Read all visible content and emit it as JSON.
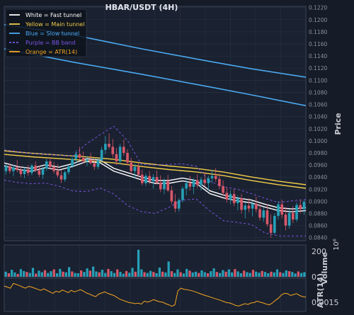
{
  "colors": {
    "background": "#161c27",
    "grid": "#2a3344",
    "text": "#c8ccd4",
    "up": "#26a0b8",
    "down": "#d8586a",
    "fast": "#ffffff",
    "main": "#f2cd4a",
    "slow": "#4aa8f0",
    "bb": "#7b55e6",
    "atr": "#f5a623"
  },
  "chart_data": [
    {
      "type": "candlestick",
      "title": "HBAR/USDT (4H)",
      "ylabel": "Price",
      "ylim": [
        0.0835,
        0.1222
      ],
      "yticks": [
        "0.0840",
        "0.0860",
        "0.0880",
        "0.0900",
        "0.0920",
        "0.0940",
        "0.0960",
        "0.0980",
        "0.1000",
        "0.1020",
        "0.1040",
        "0.1060",
        "0.1080",
        "0.1100",
        "0.1120",
        "0.1140",
        "0.1160",
        "0.1180",
        "0.1200",
        "0.1220"
      ],
      "grid": true,
      "legend_position": "top-left",
      "legend": [
        {
          "label": "White = Fast tunnel",
          "key": "fast",
          "dash": false
        },
        {
          "label": "Yellow = Main tunnel",
          "key": "main",
          "dash": false
        },
        {
          "label": "Blue = Slow tunnel",
          "key": "slow",
          "dash": false
        },
        {
          "label": "Purple = BB band",
          "key": "bb",
          "dash": true
        },
        {
          "label": "Orange = ATR(14)",
          "key": "atr",
          "dash": false
        }
      ],
      "series": [
        {
          "name": "White = Fast tunnel",
          "x": [
            0,
            20,
            40,
            60,
            80,
            100,
            120,
            140,
            160,
            180,
            200,
            220,
            240,
            260,
            280,
            300,
            320,
            340,
            360,
            380,
            400,
            420,
            440
          ],
          "values": [
            0.0961,
            0.0955,
            0.0952,
            0.0958,
            0.0954,
            0.096,
            0.0968,
            0.0966,
            0.0952,
            0.0945,
            0.0938,
            0.0932,
            0.0932,
            0.0936,
            0.0932,
            0.0915,
            0.0908,
            0.0903,
            0.09,
            0.0893,
            0.0887,
            0.0885,
            0.0887
          ]
        },
        {
          "name": "Yellow = Main tunnel",
          "x": [
            0,
            40,
            80,
            120,
            160,
            200,
            240,
            280,
            320,
            360,
            400,
            440
          ],
          "values": [
            0.0981,
            0.0977,
            0.0974,
            0.0971,
            0.0967,
            0.0961,
            0.0956,
            0.0952,
            0.0946,
            0.0938,
            0.0931,
            0.0925
          ]
        },
        {
          "name": "Blue = Slow tunnel",
          "x": [
            0,
            100,
            200,
            300,
            360,
            440
          ],
          "values": [
            0.1192,
            0.1175,
            0.1152,
            0.1131,
            0.1119,
            0.1105
          ]
        },
        {
          "name": "Blue = Slow tunnel",
          "x": [
            0,
            100,
            200,
            300,
            360,
            440
          ],
          "values": [
            0.1152,
            0.113,
            0.111,
            0.1089,
            0.1076,
            0.1058
          ]
        },
        {
          "name": "Purple = BB band",
          "x": [
            0,
            20,
            40,
            60,
            80,
            100,
            120,
            140,
            160,
            180,
            200,
            220,
            240,
            260,
            280,
            300,
            320,
            340,
            360,
            380,
            400,
            420,
            440
          ],
          "values": [
            0.0985,
            0.0982,
            0.0979,
            0.0978,
            0.0976,
            0.0975,
            0.0995,
            0.101,
            0.1024,
            0.1,
            0.0961,
            0.096,
            0.0961,
            0.0962,
            0.0958,
            0.0933,
            0.0924,
            0.092,
            0.0913,
            0.0905,
            0.0898,
            0.0901,
            0.0903
          ]
        },
        {
          "name": "Purple = BB band",
          "x": [
            0,
            20,
            40,
            60,
            80,
            100,
            120,
            140,
            160,
            180,
            200,
            220,
            240,
            260,
            280,
            300,
            320,
            340,
            360,
            380,
            400,
            420,
            440
          ],
          "values": [
            0.0935,
            0.0931,
            0.0929,
            0.093,
            0.0925,
            0.0917,
            0.0916,
            0.0922,
            0.0912,
            0.0893,
            0.0883,
            0.088,
            0.089,
            0.0902,
            0.0904,
            0.0884,
            0.0868,
            0.0865,
            0.0862,
            0.0848,
            0.0843,
            0.0843,
            0.0843
          ]
        }
      ],
      "candles": [
        {
          "o": 0.095,
          "h": 0.0962,
          "l": 0.0944,
          "c": 0.0958
        },
        {
          "o": 0.0958,
          "h": 0.0963,
          "l": 0.0946,
          "c": 0.095
        },
        {
          "o": 0.095,
          "h": 0.096,
          "l": 0.0942,
          "c": 0.0956
        },
        {
          "o": 0.0956,
          "h": 0.0968,
          "l": 0.0948,
          "c": 0.0952
        },
        {
          "o": 0.0952,
          "h": 0.0958,
          "l": 0.094,
          "c": 0.0945
        },
        {
          "o": 0.0945,
          "h": 0.0956,
          "l": 0.0938,
          "c": 0.0953
        },
        {
          "o": 0.0953,
          "h": 0.096,
          "l": 0.0942,
          "c": 0.0947
        },
        {
          "o": 0.0947,
          "h": 0.0962,
          "l": 0.0943,
          "c": 0.0959
        },
        {
          "o": 0.0959,
          "h": 0.0966,
          "l": 0.0948,
          "c": 0.0951
        },
        {
          "o": 0.0951,
          "h": 0.0959,
          "l": 0.094,
          "c": 0.0944
        },
        {
          "o": 0.0944,
          "h": 0.0957,
          "l": 0.0937,
          "c": 0.0954
        },
        {
          "o": 0.0954,
          "h": 0.097,
          "l": 0.095,
          "c": 0.0966
        },
        {
          "o": 0.0966,
          "h": 0.0972,
          "l": 0.0952,
          "c": 0.0957
        },
        {
          "o": 0.0957,
          "h": 0.0965,
          "l": 0.0946,
          "c": 0.095
        },
        {
          "o": 0.095,
          "h": 0.0961,
          "l": 0.0939,
          "c": 0.0943
        },
        {
          "o": 0.0943,
          "h": 0.0952,
          "l": 0.093,
          "c": 0.0936
        },
        {
          "o": 0.0936,
          "h": 0.0951,
          "l": 0.0932,
          "c": 0.0948
        },
        {
          "o": 0.0948,
          "h": 0.096,
          "l": 0.0944,
          "c": 0.0958
        },
        {
          "o": 0.0958,
          "h": 0.0973,
          "l": 0.0955,
          "c": 0.097
        },
        {
          "o": 0.097,
          "h": 0.0984,
          "l": 0.0962,
          "c": 0.0978
        },
        {
          "o": 0.0978,
          "h": 0.099,
          "l": 0.0968,
          "c": 0.0972
        },
        {
          "o": 0.0972,
          "h": 0.0982,
          "l": 0.0962,
          "c": 0.0966
        },
        {
          "o": 0.0966,
          "h": 0.0975,
          "l": 0.0958,
          "c": 0.0969
        },
        {
          "o": 0.0969,
          "h": 0.098,
          "l": 0.0961,
          "c": 0.0963
        },
        {
          "o": 0.0963,
          "h": 0.097,
          "l": 0.0952,
          "c": 0.0957
        },
        {
          "o": 0.0957,
          "h": 0.0971,
          "l": 0.0953,
          "c": 0.0968
        },
        {
          "o": 0.0968,
          "h": 0.099,
          "l": 0.0964,
          "c": 0.0985
        },
        {
          "o": 0.0985,
          "h": 0.1008,
          "l": 0.0978,
          "c": 0.0995
        },
        {
          "o": 0.0995,
          "h": 0.1012,
          "l": 0.0986,
          "c": 0.099
        },
        {
          "o": 0.099,
          "h": 0.1003,
          "l": 0.0972,
          "c": 0.0978
        },
        {
          "o": 0.0978,
          "h": 0.0988,
          "l": 0.096,
          "c": 0.0966
        },
        {
          "o": 0.0966,
          "h": 0.0995,
          "l": 0.0962,
          "c": 0.099
        },
        {
          "o": 0.099,
          "h": 0.1002,
          "l": 0.0975,
          "c": 0.098
        },
        {
          "o": 0.098,
          "h": 0.0986,
          "l": 0.096,
          "c": 0.0964
        },
        {
          "o": 0.0964,
          "h": 0.0972,
          "l": 0.0945,
          "c": 0.095
        },
        {
          "o": 0.095,
          "h": 0.0962,
          "l": 0.0938,
          "c": 0.0957
        },
        {
          "o": 0.0957,
          "h": 0.0963,
          "l": 0.094,
          "c": 0.0944
        },
        {
          "o": 0.0944,
          "h": 0.0952,
          "l": 0.0926,
          "c": 0.093
        },
        {
          "o": 0.093,
          "h": 0.0946,
          "l": 0.0925,
          "c": 0.0942
        },
        {
          "o": 0.0942,
          "h": 0.095,
          "l": 0.0928,
          "c": 0.0933
        },
        {
          "o": 0.0933,
          "h": 0.0945,
          "l": 0.0921,
          "c": 0.094
        },
        {
          "o": 0.094,
          "h": 0.0951,
          "l": 0.0928,
          "c": 0.0931
        },
        {
          "o": 0.0931,
          "h": 0.0943,
          "l": 0.0915,
          "c": 0.092
        },
        {
          "o": 0.092,
          "h": 0.0938,
          "l": 0.0912,
          "c": 0.0934
        },
        {
          "o": 0.0934,
          "h": 0.0944,
          "l": 0.0915,
          "c": 0.0918
        },
        {
          "o": 0.0918,
          "h": 0.0925,
          "l": 0.0895,
          "c": 0.09
        },
        {
          "o": 0.09,
          "h": 0.0912,
          "l": 0.0882,
          "c": 0.0888
        },
        {
          "o": 0.0888,
          "h": 0.0905,
          "l": 0.0883,
          "c": 0.0902
        },
        {
          "o": 0.0902,
          "h": 0.0925,
          "l": 0.0898,
          "c": 0.0921
        },
        {
          "o": 0.0921,
          "h": 0.0936,
          "l": 0.091,
          "c": 0.093
        },
        {
          "o": 0.093,
          "h": 0.0942,
          "l": 0.0918,
          "c": 0.0924
        },
        {
          "o": 0.0924,
          "h": 0.0938,
          "l": 0.0912,
          "c": 0.0935
        },
        {
          "o": 0.0935,
          "h": 0.0945,
          "l": 0.0922,
          "c": 0.0927
        },
        {
          "o": 0.0927,
          "h": 0.094,
          "l": 0.0918,
          "c": 0.0936
        },
        {
          "o": 0.0936,
          "h": 0.0948,
          "l": 0.0925,
          "c": 0.093
        },
        {
          "o": 0.093,
          "h": 0.0942,
          "l": 0.0918,
          "c": 0.0938
        },
        {
          "o": 0.0938,
          "h": 0.0952,
          "l": 0.093,
          "c": 0.0942
        },
        {
          "o": 0.0942,
          "h": 0.0955,
          "l": 0.0932,
          "c": 0.0937
        },
        {
          "o": 0.0937,
          "h": 0.0946,
          "l": 0.092,
          "c": 0.0925
        },
        {
          "o": 0.0925,
          "h": 0.0935,
          "l": 0.091,
          "c": 0.0914
        },
        {
          "o": 0.0914,
          "h": 0.0923,
          "l": 0.0898,
          "c": 0.0903
        },
        {
          "o": 0.0903,
          "h": 0.0918,
          "l": 0.0895,
          "c": 0.0912
        },
        {
          "o": 0.0912,
          "h": 0.092,
          "l": 0.0892,
          "c": 0.0897
        },
        {
          "o": 0.0897,
          "h": 0.091,
          "l": 0.0885,
          "c": 0.0905
        },
        {
          "o": 0.0905,
          "h": 0.0912,
          "l": 0.088,
          "c": 0.0886
        },
        {
          "o": 0.0886,
          "h": 0.0898,
          "l": 0.0872,
          "c": 0.0893
        },
        {
          "o": 0.0893,
          "h": 0.0905,
          "l": 0.0882,
          "c": 0.0888
        },
        {
          "o": 0.0888,
          "h": 0.09,
          "l": 0.0875,
          "c": 0.0896
        },
        {
          "o": 0.0896,
          "h": 0.0908,
          "l": 0.0882,
          "c": 0.0887
        },
        {
          "o": 0.0887,
          "h": 0.0895,
          "l": 0.0868,
          "c": 0.0873
        },
        {
          "o": 0.0873,
          "h": 0.089,
          "l": 0.0866,
          "c": 0.0885
        },
        {
          "o": 0.0885,
          "h": 0.0895,
          "l": 0.0858,
          "c": 0.0862
        },
        {
          "o": 0.0862,
          "h": 0.0878,
          "l": 0.084,
          "c": 0.0848
        },
        {
          "o": 0.0848,
          "h": 0.088,
          "l": 0.0845,
          "c": 0.0876
        },
        {
          "o": 0.0876,
          "h": 0.09,
          "l": 0.087,
          "c": 0.0895
        },
        {
          "o": 0.0895,
          "h": 0.0903,
          "l": 0.0872,
          "c": 0.0878
        },
        {
          "o": 0.0878,
          "h": 0.089,
          "l": 0.0852,
          "c": 0.086
        },
        {
          "o": 0.086,
          "h": 0.0886,
          "l": 0.0855,
          "c": 0.0881
        },
        {
          "o": 0.0881,
          "h": 0.0892,
          "l": 0.0864,
          "c": 0.087
        },
        {
          "o": 0.087,
          "h": 0.0898,
          "l": 0.0866,
          "c": 0.0894
        },
        {
          "o": 0.0894,
          "h": 0.0903,
          "l": 0.088,
          "c": 0.0887
        },
        {
          "o": 0.0887,
          "h": 0.0902,
          "l": 0.0878,
          "c": 0.0899
        }
      ]
    },
    {
      "type": "bar",
      "ylabel": "Volume",
      "ylim": [
        0,
        250
      ],
      "yticks": [
        "0",
        "200"
      ],
      "offset_label": "10⁶",
      "values": [
        40,
        28,
        55,
        34,
        22,
        60,
        45,
        38,
        30,
        70,
        25,
        48,
        36,
        52,
        30,
        44,
        58,
        28,
        62,
        40,
        35,
        76,
        42,
        30,
        28,
        50,
        38,
        66,
        48,
        80,
        42,
        35,
        55,
        30,
        62,
        44,
        30,
        58,
        38,
        24,
        45,
        32,
        70,
        40,
        212,
        58,
        36,
        30,
        46,
        38,
        28,
        72,
        40,
        34,
        120,
        44,
        30,
        58,
        36,
        26,
        62,
        48,
        34,
        40,
        30,
        50,
        36,
        28,
        44,
        66,
        38,
        30,
        52,
        40,
        58,
        34,
        60,
        42,
        28,
        48,
        36,
        30,
        54,
        40,
        32,
        46,
        38,
        28,
        40,
        34,
        58,
        36,
        30,
        50,
        44,
        38,
        26,
        42,
        30,
        36
      ]
    },
    {
      "type": "line",
      "name": "Orange = ATR(14)",
      "ylabel": "ATR(14)",
      "ylim": [
        0.001,
        0.0028
      ],
      "yticks": [
        "0.0015"
      ],
      "values": [
        0.00238,
        0.00232,
        0.00226,
        0.00252,
        0.00246,
        0.0024,
        0.00232,
        0.00226,
        0.00236,
        0.00232,
        0.00226,
        0.0022,
        0.00214,
        0.00222,
        0.00214,
        0.00206,
        0.00198,
        0.0021,
        0.00204,
        0.00216,
        0.0021,
        0.00202,
        0.00214,
        0.00206,
        0.00212,
        0.00218,
        0.0021,
        0.002,
        0.00194,
        0.00186,
        0.0018,
        0.00194,
        0.002,
        0.00206,
        0.00198,
        0.00192,
        0.00186,
        0.00176,
        0.00166,
        0.0016,
        0.00154,
        0.00148,
        0.00146,
        0.00142,
        0.00145,
        0.0014,
        0.00156,
        0.0015,
        0.00156,
        0.00164,
        0.00158,
        0.00152,
        0.0015,
        0.00142,
        0.00136,
        0.00128,
        0.00136,
        0.00212,
        0.00226,
        0.0022,
        0.00218,
        0.00214,
        0.0021,
        0.00204,
        0.00198,
        0.00192,
        0.00186,
        0.00182,
        0.00176,
        0.0017,
        0.00166,
        0.0016,
        0.00154,
        0.00148,
        0.00146,
        0.0014,
        0.00132,
        0.0013,
        0.00136,
        0.00142,
        0.00138,
        0.00146,
        0.00148,
        0.00156,
        0.0015,
        0.00146,
        0.0014,
        0.00136,
        0.00146,
        0.0016,
        0.00172,
        0.0019,
        0.00198,
        0.00196,
        0.00186,
        0.00192,
        0.00196,
        0.00186,
        0.0018,
        0.00178
      ]
    }
  ]
}
